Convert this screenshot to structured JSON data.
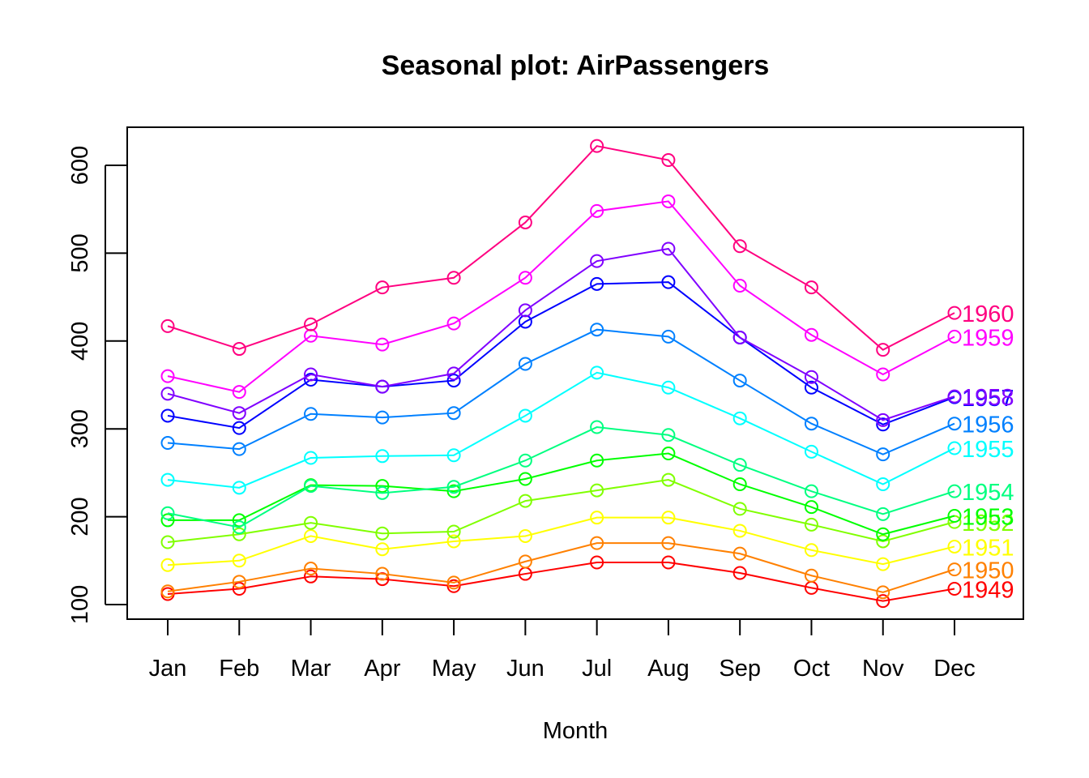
{
  "chart_data": {
    "type": "line",
    "title": "Seasonal plot: AirPassengers",
    "xlabel": "Month",
    "ylabel": "",
    "categories": [
      "Jan",
      "Feb",
      "Mar",
      "Apr",
      "May",
      "Jun",
      "Jul",
      "Aug",
      "Sep",
      "Oct",
      "Nov",
      "Dec"
    ],
    "yticks": [
      100,
      200,
      300,
      400,
      500,
      600
    ],
    "ylim": [
      90,
      650
    ],
    "grid": false,
    "markers": "open-circle",
    "series_labels_position": "right-of-last-point",
    "series": [
      {
        "name": "1949",
        "color": "#FF0000",
        "values": [
          112,
          118,
          132,
          129,
          121,
          135,
          148,
          148,
          136,
          119,
          104,
          118
        ]
      },
      {
        "name": "1950",
        "color": "#FF8000",
        "values": [
          115,
          126,
          141,
          135,
          125,
          149,
          170,
          170,
          158,
          133,
          114,
          140
        ]
      },
      {
        "name": "1951",
        "color": "#FFFF00",
        "values": [
          145,
          150,
          178,
          163,
          172,
          178,
          199,
          199,
          184,
          162,
          146,
          166
        ]
      },
      {
        "name": "1952",
        "color": "#80FF00",
        "values": [
          171,
          180,
          193,
          181,
          183,
          218,
          230,
          242,
          209,
          191,
          172,
          194
        ]
      },
      {
        "name": "1953",
        "color": "#00FF00",
        "values": [
          196,
          196,
          236,
          235,
          229,
          243,
          264,
          272,
          237,
          211,
          180,
          201
        ]
      },
      {
        "name": "1954",
        "color": "#00FF80",
        "values": [
          204,
          188,
          235,
          227,
          234,
          264,
          302,
          293,
          259,
          229,
          203,
          229
        ]
      },
      {
        "name": "1955",
        "color": "#00FFFF",
        "values": [
          242,
          233,
          267,
          269,
          270,
          315,
          364,
          347,
          312,
          274,
          237,
          278
        ]
      },
      {
        "name": "1956",
        "color": "#0080FF",
        "values": [
          284,
          277,
          317,
          313,
          318,
          374,
          413,
          405,
          355,
          306,
          271,
          306
        ]
      },
      {
        "name": "1957",
        "color": "#0000FF",
        "values": [
          315,
          301,
          356,
          348,
          355,
          422,
          465,
          467,
          404,
          347,
          305,
          336
        ]
      },
      {
        "name": "1958",
        "color": "#8000FF",
        "values": [
          340,
          318,
          362,
          348,
          363,
          435,
          491,
          505,
          404,
          359,
          310,
          337
        ]
      },
      {
        "name": "1959",
        "color": "#FF00FF",
        "values": [
          360,
          342,
          406,
          396,
          420,
          472,
          548,
          559,
          463,
          407,
          362,
          405
        ]
      },
      {
        "name": "1960",
        "color": "#FF0080",
        "values": [
          417,
          391,
          419,
          461,
          472,
          535,
          622,
          606,
          508,
          461,
          390,
          432
        ]
      }
    ]
  }
}
